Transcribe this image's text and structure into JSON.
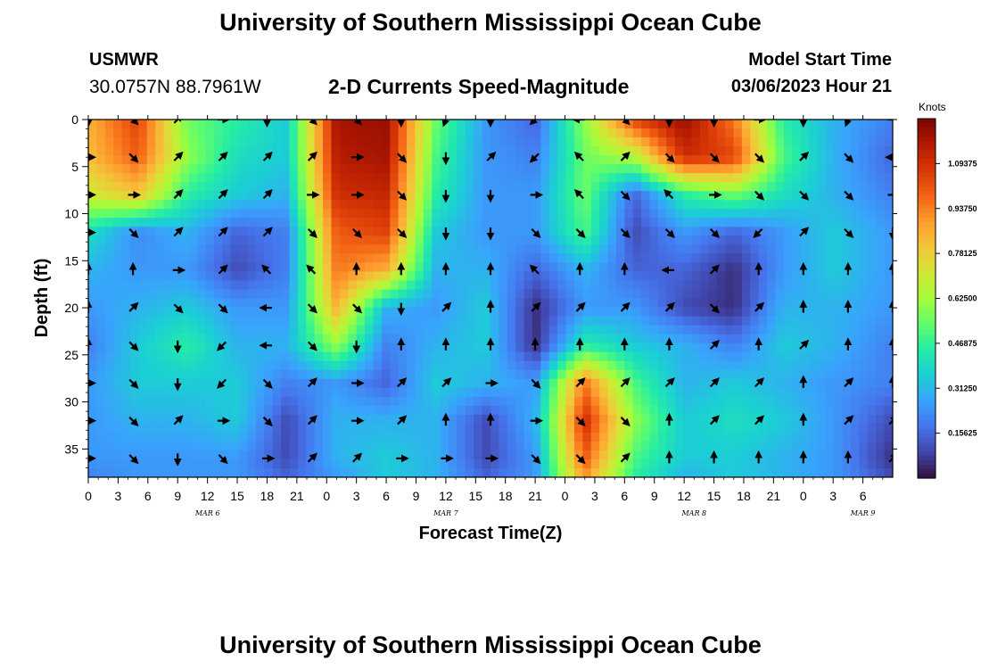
{
  "header": {
    "title": "University of Southern Mississippi Ocean Cube",
    "station": "USMWR",
    "coords": "30.0757N  88.7961W",
    "subtitle": "2-D Currents Speed-Magnitude",
    "model_label": "Model Start Time",
    "model_time": "03/06/2023 Hour 21"
  },
  "footer": {
    "title": "University of Southern Mississippi Ocean Cube"
  },
  "colorbar": {
    "label": "Knots",
    "ticks": [
      "1.09375",
      "0.93750",
      "0.78125",
      "0.62500",
      "0.46875",
      "0.31250",
      "0.15625"
    ],
    "tick_values": [
      1.09375,
      0.9375,
      0.78125,
      0.625,
      0.46875,
      0.3125,
      0.15625
    ],
    "range": [
      0,
      1.25
    ]
  },
  "colors": {
    "scale": [
      "#30123b",
      "#4145ab",
      "#4675ed",
      "#39a2fc",
      "#1bcfd4",
      "#24eca6",
      "#61fc6c",
      "#a4fc3b",
      "#d1e834",
      "#f3c63a",
      "#fe9b2d",
      "#f36315",
      "#d93806",
      "#b11901",
      "#7a0403"
    ]
  },
  "chart_data": {
    "type": "heatmap",
    "title": "2-D Currents Speed-Magnitude",
    "xlabel": "Forecast Time(Z)",
    "ylabel": "Depth (ft)",
    "x_range_hours": [
      0,
      81
    ],
    "x_tick_labels": [
      "0",
      "3",
      "6",
      "9",
      "12",
      "15",
      "18",
      "21",
      "0",
      "3",
      "6",
      "9",
      "12",
      "15",
      "18",
      "21",
      "0",
      "3",
      "6",
      "9",
      "12",
      "15",
      "18",
      "21",
      "0",
      "3",
      "6"
    ],
    "date_labels": [
      {
        "label": "MAR 6",
        "hour": 12
      },
      {
        "label": "MAR 7",
        "hour": 36
      },
      {
        "label": "MAR 8",
        "hour": 61
      },
      {
        "label": "MAR 9",
        "hour": 78
      }
    ],
    "y_range_ft": [
      0,
      38
    ],
    "y_ticks": [
      0,
      5,
      10,
      15,
      20,
      25,
      30,
      35
    ],
    "color_range_knots": [
      0,
      1.25
    ],
    "field_hours": [
      0,
      5,
      10,
      15,
      20,
      25,
      30,
      35,
      40,
      45,
      50,
      55,
      60,
      65,
      70,
      75,
      81
    ],
    "field_depths": [
      0,
      4,
      8,
      12,
      16,
      20,
      24,
      28,
      32,
      36,
      38
    ],
    "speed_knots": [
      [
        0.85,
        1.05,
        0.55,
        0.45,
        0.35,
        1.18,
        1.2,
        0.55,
        0.25,
        0.15,
        0.6,
        1.05,
        1.2,
        0.95,
        0.45,
        0.3,
        0.2
      ],
      [
        0.82,
        1.0,
        0.6,
        0.4,
        0.35,
        1.15,
        1.18,
        0.5,
        0.25,
        0.2,
        0.55,
        0.65,
        1.1,
        1.05,
        0.5,
        0.3,
        0.15
      ],
      [
        0.7,
        0.8,
        0.45,
        0.35,
        0.3,
        1.1,
        1.12,
        0.45,
        0.25,
        0.25,
        0.55,
        0.15,
        0.45,
        0.55,
        0.4,
        0.3,
        0.2
      ],
      [
        0.4,
        0.22,
        0.3,
        0.15,
        0.2,
        1.0,
        1.05,
        0.35,
        0.25,
        0.25,
        0.5,
        0.1,
        0.25,
        0.15,
        0.25,
        0.35,
        0.25
      ],
      [
        0.3,
        0.25,
        0.25,
        0.1,
        0.2,
        0.95,
        0.85,
        0.3,
        0.3,
        0.15,
        0.3,
        0.15,
        0.15,
        0.05,
        0.25,
        0.35,
        0.25
      ],
      [
        0.25,
        0.3,
        0.35,
        0.25,
        0.25,
        0.85,
        0.3,
        0.25,
        0.35,
        0.05,
        0.25,
        0.25,
        0.1,
        0.05,
        0.3,
        0.3,
        0.25
      ],
      [
        0.2,
        0.35,
        0.45,
        0.3,
        0.3,
        0.6,
        0.2,
        0.3,
        0.35,
        0.05,
        0.45,
        0.35,
        0.3,
        0.2,
        0.35,
        0.3,
        0.2
      ],
      [
        0.25,
        0.35,
        0.35,
        0.35,
        0.2,
        0.25,
        0.15,
        0.35,
        0.3,
        0.25,
        0.95,
        0.5,
        0.3,
        0.35,
        0.3,
        0.25,
        0.2
      ],
      [
        0.25,
        0.3,
        0.3,
        0.35,
        0.1,
        0.3,
        0.3,
        0.3,
        0.1,
        0.3,
        1.1,
        0.6,
        0.35,
        0.4,
        0.35,
        0.25,
        0.1
      ],
      [
        0.25,
        0.25,
        0.25,
        0.25,
        0.1,
        0.3,
        0.35,
        0.3,
        0.1,
        0.25,
        1.0,
        0.5,
        0.35,
        0.35,
        0.3,
        0.25,
        0.05
      ],
      [
        0.2,
        0.25,
        0.25,
        0.25,
        0.15,
        0.25,
        0.35,
        0.3,
        0.15,
        0.25,
        0.9,
        0.45,
        0.3,
        0.35,
        0.3,
        0.25,
        0.1
      ]
    ],
    "vector_hours": [
      0,
      4.5,
      9,
      13.5,
      18,
      22.5,
      27,
      31.5,
      36,
      40.5,
      45,
      49.5,
      54,
      58.5,
      63,
      67.5,
      72,
      76.5,
      81
    ],
    "vector_depths": [
      0,
      4,
      8,
      12,
      16,
      20,
      24,
      28,
      32,
      36
    ],
    "vector_dirs_deg": [
      [
        180,
        135,
        45,
        90,
        180,
        135,
        135,
        180,
        200,
        180,
        225,
        270,
        135,
        180,
        180,
        90,
        180,
        200,
        90
      ],
      [
        90,
        135,
        45,
        45,
        45,
        45,
        90,
        135,
        180,
        45,
        225,
        315,
        45,
        135,
        135,
        135,
        45,
        135,
        270
      ],
      [
        90,
        90,
        45,
        45,
        45,
        90,
        90,
        135,
        180,
        180,
        90,
        315,
        135,
        315,
        90,
        135,
        135,
        135,
        90
      ],
      [
        90,
        135,
        45,
        45,
        45,
        135,
        135,
        135,
        180,
        180,
        135,
        135,
        135,
        135,
        135,
        225,
        45,
        135,
        180
      ],
      [
        0,
        0,
        90,
        45,
        315,
        315,
        0,
        0,
        0,
        0,
        315,
        0,
        0,
        270,
        45,
        0,
        0,
        0,
        0
      ],
      [
        0,
        45,
        135,
        135,
        270,
        135,
        135,
        180,
        45,
        0,
        45,
        45,
        45,
        45,
        135,
        45,
        0,
        0,
        0
      ],
      [
        0,
        135,
        180,
        225,
        270,
        135,
        180,
        0,
        0,
        0,
        0,
        0,
        0,
        0,
        45,
        0,
        45,
        0,
        0
      ],
      [
        90,
        135,
        180,
        225,
        135,
        45,
        90,
        45,
        45,
        90,
        135,
        45,
        45,
        45,
        45,
        45,
        0,
        45,
        0
      ],
      [
        90,
        135,
        45,
        90,
        135,
        45,
        90,
        45,
        0,
        0,
        90,
        135,
        135,
        0,
        45,
        45,
        0,
        45,
        45
      ],
      [
        90,
        135,
        180,
        135,
        90,
        45,
        45,
        90,
        90,
        90,
        135,
        135,
        45,
        0,
        0,
        0,
        0,
        0,
        45
      ]
    ]
  }
}
